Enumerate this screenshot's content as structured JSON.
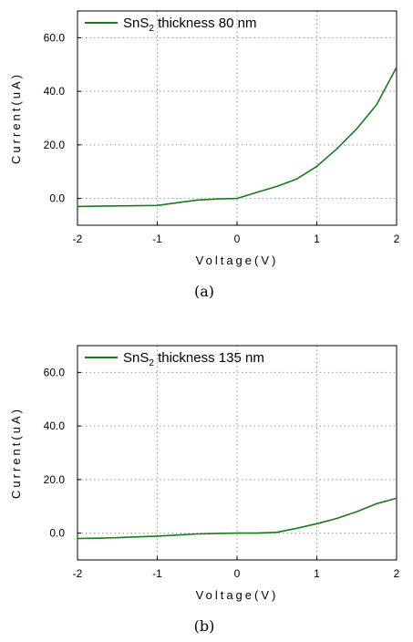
{
  "chart_data": [
    {
      "type": "line",
      "caption": "(a)",
      "xlabel": "Voltage(V)",
      "ylabel": "Current(uA)",
      "xlim": [
        -2,
        2
      ],
      "ylim": [
        -10,
        70
      ],
      "xticks": [
        -2,
        -1,
        0,
        1,
        2
      ],
      "yticks": [
        0,
        20,
        40,
        60
      ],
      "xtick_labels": [
        "-2",
        "-1",
        "0",
        "1",
        "2"
      ],
      "ytick_labels": [
        "0.0",
        "20.0",
        "40.0",
        "60.0"
      ],
      "grid": true,
      "legend_position": "top-left",
      "legend": {
        "prefix": "SnS",
        "subscript": "2",
        "suffix": " thickness 80 nm"
      },
      "series": [
        {
          "color": "#1a7a1a",
          "x": [
            -2,
            -1.75,
            -1.5,
            -1.25,
            -1,
            -0.75,
            -0.5,
            -0.25,
            0,
            0.25,
            0.5,
            0.75,
            1,
            1.25,
            1.5,
            1.75,
            2
          ],
          "y": [
            -3.0,
            -2.9,
            -2.8,
            -2.7,
            -2.6,
            -1.6,
            -0.6,
            -0.2,
            0,
            2.3,
            4.5,
            7.3,
            12,
            18.5,
            26,
            35,
            49
          ]
        }
      ]
    },
    {
      "type": "line",
      "caption": "(b)",
      "xlabel": "Voltage(V)",
      "ylabel": "Current(uA)",
      "xlim": [
        -2,
        2
      ],
      "ylim": [
        -10,
        70
      ],
      "xticks": [
        -2,
        -1,
        0,
        1,
        2
      ],
      "yticks": [
        0,
        20,
        40,
        60
      ],
      "xtick_labels": [
        "-2",
        "-1",
        "0",
        "1",
        "2"
      ],
      "ytick_labels": [
        "0.0",
        "20.0",
        "40.0",
        "60.0"
      ],
      "grid": true,
      "legend_position": "top-left",
      "legend": {
        "prefix": "SnS",
        "subscript": "2",
        "suffix": " thickness 135 nm"
      },
      "series": [
        {
          "color": "#1a7a1a",
          "x": [
            -2,
            -1.75,
            -1.5,
            -1.25,
            -1,
            -0.75,
            -0.5,
            -0.25,
            0,
            0.25,
            0.5,
            0.75,
            1,
            1.25,
            1.5,
            1.75,
            2
          ],
          "y": [
            -2.0,
            -1.9,
            -1.7,
            -1.4,
            -1.1,
            -0.7,
            -0.3,
            -0.1,
            0,
            0,
            0.3,
            1.8,
            3.5,
            5.5,
            8.0,
            11,
            13
          ]
        }
      ]
    }
  ]
}
